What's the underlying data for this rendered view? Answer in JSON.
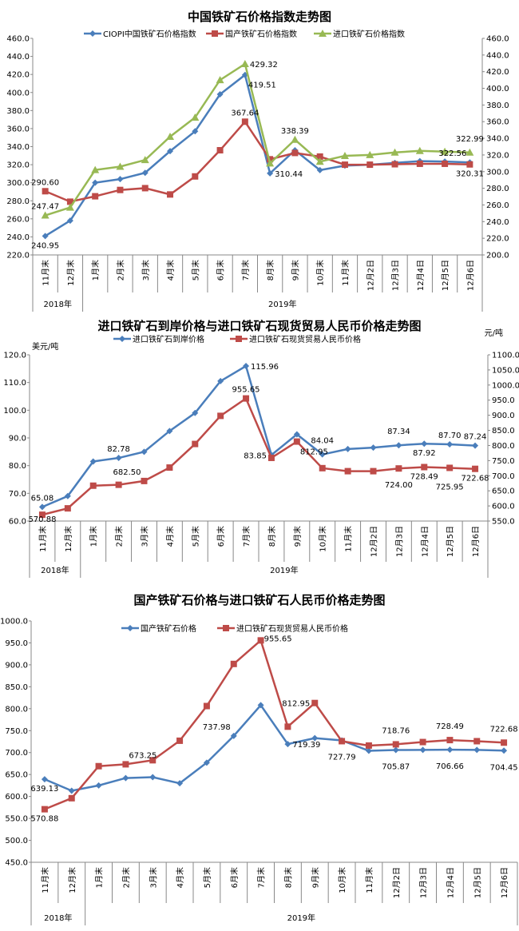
{
  "colors": {
    "blue": "#4a7ebb",
    "red": "#be4b48",
    "green": "#98b954"
  },
  "chart_data": [
    {
      "type": "line",
      "title": "中国铁矿石价格指数走势图",
      "categories": [
        "11月末",
        "12月末",
        "1月末",
        "2月末",
        "3月末",
        "4月末",
        "5月末",
        "6月末",
        "7月末",
        "8月末",
        "9月末",
        "10月末",
        "11月末",
        "12月2日",
        "12月3日",
        "12月4日",
        "12月5日",
        "12月6日"
      ],
      "year_groups": [
        {
          "label": "2018年",
          "span": 2
        },
        {
          "label": "2019年",
          "span": 16
        }
      ],
      "left_axis": {
        "min": 220,
        "max": 460,
        "step": 20,
        "unit": ""
      },
      "right_axis": {
        "min": 200,
        "max": 460,
        "step": 20,
        "unit": ""
      },
      "grid": false,
      "legend": "top",
      "series": [
        {
          "name": "CIOPI中国铁矿石价格指数",
          "color": "blue",
          "marker": "diamond",
          "axis": "left",
          "values": [
            240.95,
            258,
            300,
            304,
            311,
            335,
            357,
            398,
            419.51,
            310.44,
            336,
            314,
            319,
            320,
            322,
            324,
            323.5,
            322.56
          ]
        },
        {
          "name": "国产铁矿石价格指数",
          "color": "red",
          "marker": "square",
          "axis": "left",
          "values": [
            290.6,
            279,
            285,
            292,
            294,
            287,
            307,
            336,
            367.64,
            326,
            333,
            329,
            320,
            320,
            320.5,
            321,
            321,
            320.31
          ]
        },
        {
          "name": "进口铁矿石价格指数",
          "color": "green",
          "marker": "triangle",
          "axis": "right",
          "values": [
            247.47,
            257,
            302,
            306,
            314,
            342,
            365,
            410,
            429.32,
            310,
            338.39,
            312,
            319,
            320,
            323,
            325,
            324,
            322.99
          ]
        }
      ],
      "data_labels": [
        {
          "series": 0,
          "category": 0,
          "text": "240.95",
          "pos": "below"
        },
        {
          "series": 2,
          "category": 0,
          "text": "247.47",
          "pos": "above"
        },
        {
          "series": 1,
          "category": 0,
          "text": "290.60",
          "pos": "above"
        },
        {
          "series": 0,
          "category": 8,
          "text": "419.51",
          "pos": "below-right"
        },
        {
          "series": 2,
          "category": 8,
          "text": "429.32",
          "pos": "right"
        },
        {
          "series": 1,
          "category": 8,
          "text": "367.64",
          "pos": "above"
        },
        {
          "series": 0,
          "category": 9,
          "text": "310.44",
          "pos": "right"
        },
        {
          "series": 2,
          "category": 10,
          "text": "338.39",
          "pos": "above"
        },
        {
          "series": 2,
          "category": 17,
          "text": "322.99",
          "pos": "above-high"
        },
        {
          "series": 0,
          "category": 17,
          "text": "322.56",
          "pos": "above-left"
        },
        {
          "series": 1,
          "category": 17,
          "text": "320.31",
          "pos": "below"
        }
      ]
    },
    {
      "type": "line",
      "title": "进口铁矿石到岸价格与进口铁矿石现货贸易人民币价格走势图",
      "categories": [
        "11月末",
        "12月末",
        "1月末",
        "2月末",
        "3月末",
        "4月末",
        "5月末",
        "6月末",
        "7月末",
        "8月末",
        "9月末",
        "10月末",
        "11月末",
        "12月2日",
        "12月3日",
        "12月4日",
        "12月5日",
        "12月6日"
      ],
      "year_groups": [
        {
          "label": "2018年",
          "span": 2
        },
        {
          "label": "2019年",
          "span": 16
        }
      ],
      "left_axis": {
        "min": 60,
        "max": 120,
        "step": 10,
        "unit": "美元/吨"
      },
      "right_axis": {
        "min": 550,
        "max": 1100,
        "step": 50,
        "unit": "元/吨"
      },
      "grid": false,
      "legend": "top",
      "series": [
        {
          "name": "进口铁矿石到岸价格",
          "color": "blue",
          "marker": "diamond",
          "axis": "left",
          "values": [
            65.08,
            69,
            81.5,
            82.78,
            85,
            92.5,
            99,
            110.5,
            115.96,
            83.85,
            91.3,
            84.04,
            86,
            86.5,
            87.34,
            87.92,
            87.7,
            87.24
          ]
        },
        {
          "name": "进口铁矿石现货贸易人民币价格",
          "color": "red",
          "marker": "square",
          "axis": "right",
          "values": [
            570.88,
            592,
            667,
            670,
            682.5,
            727,
            805,
            898,
            955.65,
            759,
            812.95,
            725,
            715,
            715,
            724.0,
            728.49,
            725.95,
            722.68
          ]
        }
      ],
      "data_labels": [
        {
          "series": 0,
          "category": 0,
          "text": "65.08",
          "pos": "above"
        },
        {
          "series": 1,
          "category": 0,
          "text": "570.88",
          "pos": "below"
        },
        {
          "series": 0,
          "category": 3,
          "text": "82.78",
          "pos": "above"
        },
        {
          "series": 1,
          "category": 4,
          "text": "682.50",
          "pos": "above-left"
        },
        {
          "series": 0,
          "category": 8,
          "text": "115.96",
          "pos": "right"
        },
        {
          "series": 1,
          "category": 8,
          "text": "955.65",
          "pos": "above"
        },
        {
          "series": 0,
          "category": 9,
          "text": "83.85",
          "pos": "left"
        },
        {
          "series": 1,
          "category": 10,
          "text": "812.95",
          "pos": "below-right"
        },
        {
          "series": 0,
          "category": 11,
          "text": "84.04",
          "pos": "above-high"
        },
        {
          "series": 0,
          "category": 14,
          "text": "87.34",
          "pos": "above-high"
        },
        {
          "series": 0,
          "category": 15,
          "text": "87.92",
          "pos": "below"
        },
        {
          "series": 0,
          "category": 16,
          "text": "87.70",
          "pos": "above"
        },
        {
          "series": 0,
          "category": 17,
          "text": "87.24",
          "pos": "above"
        },
        {
          "series": 1,
          "category": 14,
          "text": "724.00",
          "pos": "below-far"
        },
        {
          "series": 1,
          "category": 15,
          "text": "728.49",
          "pos": "below"
        },
        {
          "series": 1,
          "category": 16,
          "text": "725.95",
          "pos": "below"
        },
        {
          "series": 1,
          "category": 17,
          "text": "722.68",
          "pos": "below-far"
        }
      ]
    },
    {
      "type": "line",
      "title": "国产铁矿石价格与进口铁矿石人民币价格走势图",
      "categories": [
        "11月末",
        "12月末",
        "1月末",
        "2月末",
        "3月末",
        "4月末",
        "5月末",
        "6月末",
        "7月末",
        "8月末",
        "9月末",
        "10月末",
        "11月末",
        "12月2日",
        "12月3日",
        "12月4日",
        "12月5日",
        "12月6日"
      ],
      "year_groups": [
        {
          "label": "2018年",
          "span": 2
        },
        {
          "label": "2019年",
          "span": 16
        }
      ],
      "left_axis": {
        "min": 450,
        "max": 1000,
        "step": 50,
        "unit": ""
      },
      "grid": false,
      "legend": "top",
      "series": [
        {
          "name": "国产铁矿石价格",
          "color": "blue",
          "marker": "diamond",
          "axis": "left",
          "values": [
            639.13,
            613,
            625,
            642,
            644,
            630,
            677,
            737.98,
            808,
            719.39,
            733,
            727.79,
            704,
            705.87,
            706,
            706.66,
            706,
            704.45
          ]
        },
        {
          "name": "进口铁矿石现货贸易人民币价格",
          "color": "red",
          "marker": "square",
          "axis": "left",
          "values": [
            570.88,
            596,
            669,
            673.25,
            682.5,
            727,
            806,
            902,
            955.65,
            759,
            812.95,
            726,
            716,
            718.76,
            724.0,
            728.49,
            725.95,
            722.68
          ]
        }
      ],
      "data_labels": [
        {
          "series": 0,
          "category": 0,
          "text": "639.13",
          "pos": "below"
        },
        {
          "series": 1,
          "category": 0,
          "text": "570.88",
          "pos": "below"
        },
        {
          "series": 1,
          "category": 3,
          "text": "673.25",
          "pos": "above-right"
        },
        {
          "series": 0,
          "category": 7,
          "text": "737.98",
          "pos": "above-left"
        },
        {
          "series": 1,
          "category": 8,
          "text": "955.65",
          "pos": "above-right"
        },
        {
          "series": 0,
          "category": 9,
          "text": "719.39",
          "pos": "right"
        },
        {
          "series": 1,
          "category": 10,
          "text": "812.95",
          "pos": "left"
        },
        {
          "series": 0,
          "category": 11,
          "text": "727.79",
          "pos": "below-far"
        },
        {
          "series": 1,
          "category": 13,
          "text": "718.76",
          "pos": "above-high"
        },
        {
          "series": 0,
          "category": 13,
          "text": "705.87",
          "pos": "below-far"
        },
        {
          "series": 1,
          "category": 15,
          "text": "728.49",
          "pos": "above-high"
        },
        {
          "series": 0,
          "category": 15,
          "text": "706.66",
          "pos": "below-far"
        },
        {
          "series": 1,
          "category": 17,
          "text": "722.68",
          "pos": "above-high"
        },
        {
          "series": 0,
          "category": 17,
          "text": "704.45",
          "pos": "below-far"
        }
      ]
    }
  ]
}
